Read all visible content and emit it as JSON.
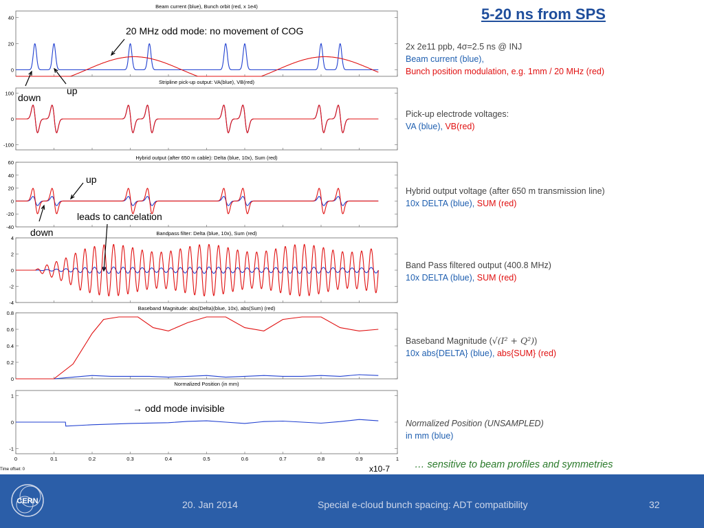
{
  "title": "5-20 ns from SPS",
  "chart_data": [
    {
      "type": "line",
      "title": "Beam current (blue), Bunch orbit (red, x 1e4)",
      "ylim": [
        -5,
        45
      ],
      "yticks": [
        0,
        20,
        40
      ],
      "series": [
        {
          "name": "Beam current",
          "color": "#1f3fd0",
          "kind": "pulses",
          "centers": [
            0.05,
            0.1,
            0.3,
            0.35,
            0.55,
            0.6,
            0.8,
            0.85
          ],
          "amplitude": 20,
          "width": 0.006
        },
        {
          "name": "Bunch orbit",
          "color": "#e01010",
          "kind": "sine",
          "period": 0.5,
          "phase": 0.06,
          "amplitude": 10
        }
      ]
    },
    {
      "type": "line",
      "title": "Stripline pick-up output: VA(blue), VB(red)",
      "ylim": [
        -120,
        120
      ],
      "yticks": [
        -100,
        0,
        100
      ],
      "series": [
        {
          "name": "VA",
          "color": "#1f3fd0",
          "kind": "doublet",
          "centers": [
            0.05,
            0.1,
            0.3,
            0.35,
            0.55,
            0.6,
            0.8,
            0.85
          ],
          "amplitude": 60
        },
        {
          "name": "VB",
          "color": "#e01010",
          "kind": "doublet",
          "centers": [
            0.05,
            0.1,
            0.3,
            0.35,
            0.55,
            0.6,
            0.8,
            0.85
          ],
          "amplitude": 60
        }
      ]
    },
    {
      "type": "line",
      "title": "Hybrid output (after 650 m cable): Delta (blue, 10x), Sum (red)",
      "ylim": [
        -40,
        60
      ],
      "yticks": [
        -40,
        -20,
        0,
        20,
        40,
        60
      ],
      "series": [
        {
          "name": "Delta",
          "color": "#1f3fd0",
          "kind": "doublet",
          "centers": [
            0.05,
            0.1,
            0.3,
            0.35,
            0.55,
            0.6,
            0.8,
            0.85
          ],
          "amplitude": 8
        },
        {
          "name": "Sum",
          "color": "#e01010",
          "kind": "doublet",
          "centers": [
            0.05,
            0.1,
            0.3,
            0.35,
            0.55,
            0.6,
            0.8,
            0.85
          ],
          "amplitude": 22
        }
      ]
    },
    {
      "type": "line",
      "title": "Bandpass filter: Delta (blue, 10x), Sum (red)",
      "ylim": [
        -4,
        4
      ],
      "yticks": [
        -4,
        -2,
        0,
        2,
        4
      ],
      "series": [
        {
          "name": "Delta",
          "color": "#1f3fd0",
          "kind": "carrier",
          "amplitude": 0.4,
          "start": 0.05,
          "cycles": 40
        },
        {
          "name": "Sum",
          "color": "#e01010",
          "kind": "carrier",
          "amplitude": 3.2,
          "start": 0.05,
          "cycles": 40
        }
      ]
    },
    {
      "type": "line",
      "title": "Baseband Magnitude: abs(Delta)(blue, 10x), abs(Sum) (red)",
      "ylim": [
        0,
        0.8
      ],
      "yticks": [
        0,
        0.2,
        0.4,
        0.6,
        0.8
      ],
      "series": [
        {
          "name": "abs(Delta)",
          "color": "#1f3fd0",
          "x": [
            0,
            0.1,
            0.15,
            0.2,
            0.25,
            0.3,
            0.35,
            0.4,
            0.45,
            0.5,
            0.55,
            0.6,
            0.65,
            0.7,
            0.75,
            0.8,
            0.85,
            0.9,
            0.95
          ],
          "y": [
            0,
            0,
            0.02,
            0.04,
            0.03,
            0.03,
            0.03,
            0.02,
            0.03,
            0.04,
            0.02,
            0.03,
            0.04,
            0.03,
            0.03,
            0.04,
            0.03,
            0.05,
            0.04
          ]
        },
        {
          "name": "abs(Sum)",
          "color": "#e01010",
          "x": [
            0,
            0.1,
            0.15,
            0.2,
            0.23,
            0.27,
            0.32,
            0.36,
            0.4,
            0.45,
            0.5,
            0.55,
            0.6,
            0.65,
            0.7,
            0.75,
            0.8,
            0.85,
            0.9,
            0.95
          ],
          "y": [
            0,
            0,
            0.18,
            0.55,
            0.72,
            0.75,
            0.75,
            0.62,
            0.58,
            0.68,
            0.75,
            0.75,
            0.62,
            0.58,
            0.72,
            0.75,
            0.75,
            0.62,
            0.58,
            0.6
          ]
        }
      ]
    },
    {
      "type": "line",
      "title": "Normalized Position (in mm)",
      "ylim": [
        -1.2,
        1.2
      ],
      "yticks": [
        -1,
        0,
        1
      ],
      "xlim": [
        0,
        1
      ],
      "xticks": [
        "0",
        "0.1",
        "0.2",
        "0.3",
        "0.4",
        "0.5",
        "0.6",
        "0.7",
        "0.8",
        "0.9",
        "1"
      ],
      "xunit": "x10-7",
      "timeoffset": "Time offset: 0",
      "series": [
        {
          "name": "Position",
          "color": "#1f3fd0",
          "x": [
            0,
            0.13,
            0.131,
            0.2,
            0.3,
            0.4,
            0.45,
            0.5,
            0.55,
            0.6,
            0.65,
            0.7,
            0.75,
            0.8,
            0.85,
            0.9,
            0.95
          ],
          "y": [
            0,
            0,
            -0.15,
            -0.1,
            -0.05,
            -0.02,
            0.03,
            0.05,
            0.0,
            -0.05,
            0.02,
            0.04,
            0.0,
            -0.04,
            0.02,
            0.1,
            0.05
          ]
        }
      ]
    }
  ],
  "annotations": {
    "odd_mode": "20 MHz odd mode: no movement of COG",
    "up1": "up",
    "down1": "down",
    "up2": "up",
    "down2": "down",
    "cancel": "leads to cancelation",
    "invisible": "→ odd mode invisible"
  },
  "descriptions": {
    "d1_line1": "2x 2e11 ppb, 4σ=2.5 ns @ INJ",
    "d1_line2": "Beam current (blue),",
    "d1_line3": "Bunch position modulation, e.g. 1mm / 20 MHz (red)",
    "d2_line1": "Pick-up electrode voltages:",
    "d2_va": "VA (blue), ",
    "d2_vb": "VB(red)",
    "d3_line1": "Hybrid output voltage (after 650 m transmission line)",
    "d3_blue": "10x DELTA (blue), ",
    "d3_red": "SUM (red)",
    "d4_line1": "Band Pass filtered output (400.8 MHz)",
    "d4_blue": "10x DELTA (blue), ",
    "d4_red": "SUM (red)",
    "d5_line1": "Baseband Magnitude (",
    "d5_formula": "√(I² + Q²)",
    "d5_close": ")",
    "d5_blue": "10x abs{DELTA} (blue), ",
    "d5_red": "abs{SUM} (red)",
    "d6_line1": "Normalized Position (UNSAMPLED)",
    "d6_line2": "in mm (blue)"
  },
  "note": "… sensitive to beam profiles and symmetries",
  "footer": {
    "date": "20. Jan 2014",
    "talk": "Special e-cloud bunch spacing: ADT compatibility",
    "page": "32",
    "logo_text": "CERN"
  }
}
